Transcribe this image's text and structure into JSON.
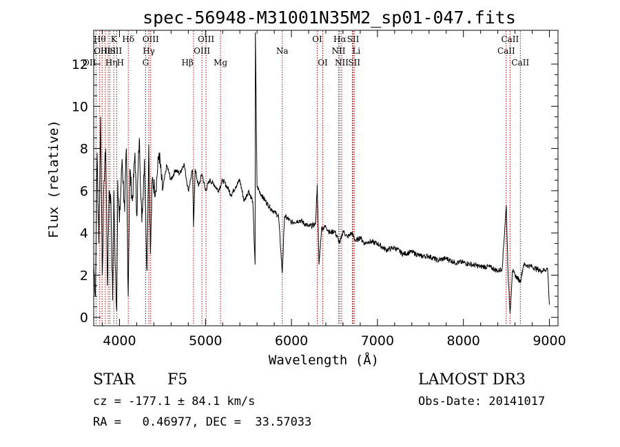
{
  "chart_data": {
    "type": "line",
    "title": "spec-56948-M31001N35M2_sp01-047.fits",
    "xlabel": "Wavelength (Å)",
    "ylabel": "Flux (relative)",
    "xlim": [
      3700,
      9100
    ],
    "ylim": [
      -0.4,
      13.6
    ],
    "x_ticks": [
      4000,
      5000,
      6000,
      7000,
      8000,
      9000
    ],
    "y_ticks": [
      0,
      2,
      4,
      6,
      8,
      10,
      12
    ],
    "series": [
      {
        "name": "spectrum",
        "x": [
          3700,
          3720,
          3740,
          3760,
          3780,
          3800,
          3820,
          3840,
          3860,
          3880,
          3900,
          3920,
          3935,
          3950,
          3968,
          3980,
          4000,
          4030,
          4060,
          4080,
          4101,
          4120,
          4150,
          4180,
          4200,
          4230,
          4260,
          4290,
          4320,
          4340,
          4360,
          4380,
          4420,
          4460,
          4500,
          4550,
          4600,
          4650,
          4700,
          4750,
          4800,
          4850,
          4861,
          4880,
          4920,
          4960,
          5000,
          5050,
          5100,
          5150,
          5200,
          5250,
          5300,
          5350,
          5400,
          5450,
          5500,
          5550,
          5577,
          5580,
          5600,
          5650,
          5700,
          5750,
          5800,
          5850,
          5893,
          5920,
          6000,
          6100,
          6200,
          6280,
          6300,
          6320,
          6350,
          6400,
          6450,
          6500,
          6563,
          6600,
          6650,
          6700,
          6750,
          6800,
          6850,
          6900,
          7000,
          7100,
          7200,
          7300,
          7400,
          7500,
          7600,
          7700,
          7800,
          7900,
          8000,
          8100,
          8200,
          8300,
          8400,
          8450,
          8498,
          8520,
          8542,
          8570,
          8600,
          8662,
          8700,
          8800,
          8900,
          8980,
          9000
        ],
        "y": [
          2.5,
          1.0,
          7.8,
          3.5,
          9.5,
          2.0,
          6.5,
          8.0,
          1.5,
          6.0,
          5.5,
          0.8,
          6.0,
          2.5,
          0.3,
          6.5,
          4.5,
          7.5,
          5.0,
          8.0,
          1.0,
          7.0,
          5.5,
          7.8,
          4.8,
          8.5,
          4.5,
          7.5,
          2.2,
          8.2,
          3.0,
          6.5,
          6.0,
          7.8,
          6.0,
          7.2,
          6.5,
          7.0,
          6.8,
          7.3,
          6.0,
          7.0,
          4.3,
          7.0,
          6.2,
          6.8,
          6.0,
          6.5,
          6.3,
          6.0,
          6.5,
          6.2,
          5.8,
          6.2,
          6.5,
          5.5,
          6.0,
          5.5,
          2.5,
          13.5,
          6.2,
          5.8,
          5.5,
          5.2,
          5.0,
          4.8,
          2.1,
          4.8,
          4.5,
          4.6,
          4.3,
          4.4,
          6.3,
          2.5,
          4.2,
          4.3,
          4.0,
          4.1,
          3.5,
          4.1,
          3.8,
          4.0,
          3.6,
          3.8,
          3.5,
          3.6,
          3.5,
          3.2,
          3.3,
          3.0,
          3.1,
          2.9,
          2.9,
          2.7,
          2.8,
          2.6,
          2.6,
          2.5,
          2.4,
          2.4,
          2.2,
          2.3,
          5.3,
          2.0,
          0.2,
          2.2,
          2.0,
          1.7,
          2.5,
          2.4,
          2.2,
          2.3,
          0.6
        ]
      }
    ],
    "lines": [
      {
        "x": 3727,
        "label": "OII",
        "row": 2,
        "ha": "right"
      },
      {
        "x": 3770,
        "label": "Hθ",
        "row": 0,
        "ha": "center"
      },
      {
        "x": 3798,
        "label": "OIII",
        "row": 1,
        "ha": "center"
      },
      {
        "x": 3835,
        "label": "Hη",
        "row": 2,
        "ha": "left"
      },
      {
        "x": 3869,
        "label": "HeI",
        "row": 1,
        "ha": "center"
      },
      {
        "x": 3889,
        "label": "SII",
        "row": 1,
        "ha": "left"
      },
      {
        "x": 3934,
        "label": "K",
        "row": 0,
        "ha": "center"
      },
      {
        "x": 3968,
        "label": "H",
        "row": 2,
        "ha": "left"
      },
      {
        "x": 4102,
        "label": "Hδ",
        "row": 0,
        "ha": "center"
      },
      {
        "x": 4304,
        "label": "G",
        "row": 2,
        "ha": "center"
      },
      {
        "x": 4341,
        "label": "Hγ",
        "row": 1,
        "ha": "center"
      },
      {
        "x": 4363,
        "label": "OIII",
        "row": 0,
        "ha": "center"
      },
      {
        "x": 4861,
        "label": "Hβ",
        "row": 2,
        "ha": "right"
      },
      {
        "x": 4959,
        "label": "OIII",
        "row": 1,
        "ha": "center"
      },
      {
        "x": 5007,
        "label": "OIII",
        "row": 0,
        "ha": "center"
      },
      {
        "x": 5175,
        "label": "Mg",
        "row": 2,
        "ha": "center"
      },
      {
        "x": 5893,
        "label": "Na",
        "row": 1,
        "ha": "center"
      },
      {
        "x": 6300,
        "label": "OI",
        "row": 0,
        "ha": "center"
      },
      {
        "x": 6364,
        "label": "OI",
        "row": 2,
        "ha": "center"
      },
      {
        "x": 6548,
        "label": "NII",
        "row": 1,
        "ha": "center"
      },
      {
        "x": 6563,
        "label": "Hα",
        "row": 0,
        "ha": "center"
      },
      {
        "x": 6584,
        "label": "NII",
        "row": 2,
        "ha": "center"
      },
      {
        "x": 6708,
        "label": "Li",
        "row": 1,
        "ha": "left"
      },
      {
        "x": 6717,
        "label": "SII",
        "row": 0,
        "ha": "center"
      },
      {
        "x": 6731,
        "label": "SII",
        "row": 2,
        "ha": "center"
      },
      {
        "x": 8498,
        "label": "CaII",
        "row": 1,
        "ha": "center"
      },
      {
        "x": 8542,
        "label": "CaII",
        "row": 0,
        "ha": "center"
      },
      {
        "x": 8662,
        "label": "CaII",
        "row": 2,
        "ha": "center"
      }
    ]
  },
  "info": {
    "class_label": "STAR",
    "subclass": "F5",
    "survey": "LAMOST DR3",
    "cz": "cz = -177.1 ± 84.1 km/s",
    "obs_date": "Obs-Date: 20141017",
    "coords": "RA =   0.46977, DEC =  33.57033"
  }
}
